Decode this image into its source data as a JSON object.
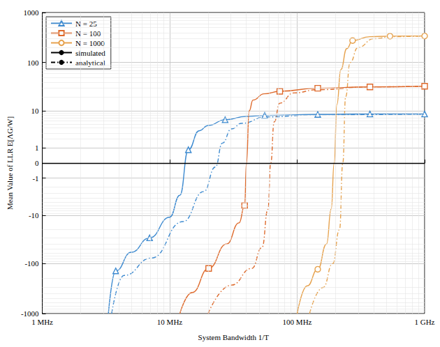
{
  "chart_data": {
    "type": "line",
    "xlabel": "System Bandwidth 1/T",
    "ylabel": "Mean Value of LLR E[ΛG/W]",
    "log": true,
    "grid": true,
    "legend": "top-left",
    "xlim": [
      1,
      1000
    ],
    "xticks": [
      {
        "value": 1,
        "label": "1 MHz"
      },
      {
        "value": 10,
        "label": "10 MHz"
      },
      {
        "value": 100,
        "label": "100 MHz"
      },
      {
        "value": 1000,
        "label": "1 GHz"
      }
    ],
    "ylim": [
      -1000,
      1000
    ],
    "yticks": [
      -1000,
      -100,
      -10,
      -1,
      0,
      1,
      10,
      100,
      1000
    ],
    "series": [
      {
        "name": "N = 25",
        "color": "#3d8ad0",
        "marker": "triangle",
        "curves": [
          {
            "name": "simulated",
            "line_style": "solid",
            "x": [
              3.3,
              3.77,
              5,
              6.95,
              10,
              12,
              14,
              17,
              20,
              27.2,
              40,
              55.6,
              145,
              372,
              1000
            ],
            "values": [
              -1000,
              -140,
              -59,
              -30,
              -11,
              -3.4,
              0.84,
              3.4,
              4.6,
              6.3,
              7.5,
              7.9,
              8.3,
              8.5,
              8.5
            ],
            "marker_x": [
              3.77,
              6.95,
              14,
              27.2,
              55.6,
              145,
              372,
              1000
            ]
          },
          {
            "name": "analytical",
            "line_style": "dashdot",
            "x": [
              3.5,
              4.38,
              7.2,
              12.7,
              18.5,
              22.8,
              25.9,
              30.5,
              36.7,
              56.8,
              145,
              1000
            ],
            "values": [
              -1000,
              -173,
              -77,
              -13.7,
              -2.7,
              -0.2,
              1.5,
              3.8,
              5.2,
              7.3,
              8.2,
              8.5
            ]
          }
        ]
      },
      {
        "name": "N = 100",
        "color": "#de6a2c",
        "marker": "square",
        "curves": [
          {
            "name": "simulated",
            "line_style": "solid",
            "x": [
              12,
              15,
              20.2,
              28,
              35,
              38.7,
              40,
              42,
              45,
              55,
              73,
              145,
              372,
              1000
            ],
            "values": [
              -1000,
              -380,
              -125,
              -40,
              -14.6,
              -6,
              0,
              10,
              17,
              23,
              26,
              30,
              32,
              33
            ],
            "marker_x": [
              20.2,
              38.7,
              73,
              145,
              372,
              1000
            ]
          },
          {
            "name": "analytical",
            "line_style": "dashdot",
            "x": [
              20,
              30.5,
              44,
              53,
              59,
              62,
              66,
              73,
              94,
              145,
              372,
              1000
            ],
            "values": [
              -1000,
              -270,
              -125,
              -47,
              -7.3,
              0,
              5.6,
              14.6,
              24,
              28,
              32,
              33
            ]
          }
        ]
      },
      {
        "name": "N = 1000",
        "color": "#e6a24e",
        "marker": "circle",
        "curves": [
          {
            "name": "simulated",
            "line_style": "solid",
            "x": [
              100,
              120,
              145,
              170,
              185,
              195,
              205,
              220,
              245,
              272,
              372,
              535,
              1000
            ],
            "values": [
              -1000,
              -280,
              -130,
              -40,
              -7.2,
              0,
              13.7,
              72,
              190,
              276,
              330,
              338,
              340
            ],
            "marker_x": [
              145,
              272,
              535,
              1000
            ]
          },
          {
            "name": "analytical",
            "line_style": "dashdot",
            "x": [
              125,
              160,
              190,
              215,
              228,
              240,
              260,
              300,
              400,
              550,
              1000
            ],
            "values": [
              -1000,
              -300,
              -100,
              -20,
              0,
              20,
              100,
              200,
              300,
              330,
              340
            ]
          }
        ]
      }
    ]
  }
}
